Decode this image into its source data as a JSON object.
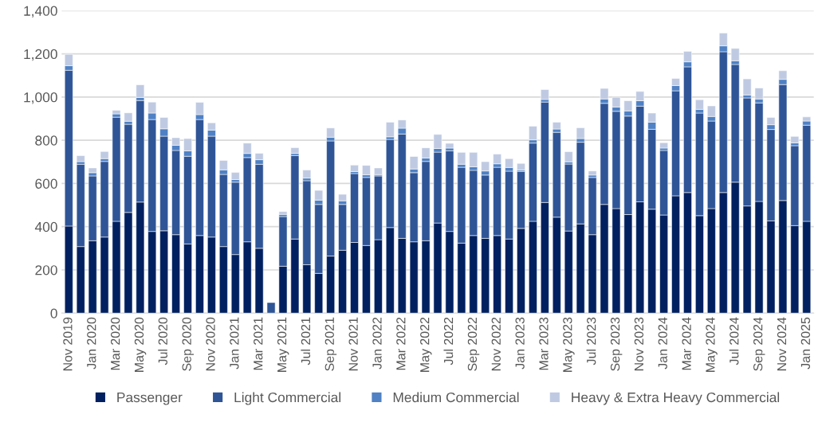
{
  "chart_data": {
    "type": "bar",
    "stacked": true,
    "categories": [
      "Nov 2019",
      null,
      "Jan 2020",
      null,
      "Mar 2020",
      null,
      "May 2020",
      null,
      "Jul 2020",
      null,
      "Sep 2020",
      null,
      "Nov 2020",
      null,
      "Jan 2021",
      null,
      "Mar 2021",
      null,
      "May 2021",
      null,
      "Jul 2021",
      null,
      "Sep 2021",
      null,
      "Nov 2021",
      null,
      "Jan 2022",
      null,
      "Mar 2022",
      null,
      "May 2022",
      null,
      "Jul 2022",
      null,
      "Sep 2022",
      null,
      "Nov 2022",
      null,
      "Jan 2023",
      null,
      "Mar 2023",
      null,
      "May 2023",
      null,
      "Jul 2023",
      null,
      "Sep 2023",
      null,
      "Nov 2023",
      null,
      "Jan 2024",
      null,
      "Mar 2024",
      null,
      "May 2024",
      null,
      "Jul 2024",
      null,
      "Sep 2024",
      null,
      "Nov 2024",
      null,
      "Jan 2025"
    ],
    "series": [
      {
        "name": "Passenger",
        "color": "#002060",
        "values": [
          403,
          308,
          335,
          352,
          425,
          466,
          514,
          378,
          381,
          363,
          320,
          359,
          352,
          308,
          271,
          330,
          300,
          0,
          217,
          343,
          224,
          184,
          264,
          291,
          327,
          313,
          340,
          396,
          346,
          330,
          335,
          417,
          378,
          324,
          359,
          346,
          359,
          343,
          392,
          425,
          512,
          444,
          380,
          413,
          363,
          503,
          484,
          456,
          515,
          481,
          454,
          543,
          558,
          451,
          484,
          558,
          606,
          496,
          517,
          427,
          521,
          405,
          425
        ]
      },
      {
        "name": "Light Commercial",
        "color": "#2f5597",
        "values": [
          721,
          381,
          300,
          350,
          482,
          408,
          470,
          518,
          438,
          390,
          406,
          537,
          467,
          334,
          335,
          390,
          389,
          49,
          230,
          386,
          389,
          319,
          533,
          212,
          319,
          315,
          295,
          408,
          483,
          320,
          367,
          328,
          373,
          351,
          302,
          293,
          316,
          314,
          264,
          362,
          465,
          393,
          310,
          378,
          265,
          468,
          450,
          456,
          443,
          370,
          299,
          486,
          582,
          475,
          405,
          652,
          545,
          500,
          456,
          423,
          537,
          370,
          445
        ]
      },
      {
        "name": "Medium Commercial",
        "color": "#4f81c4",
        "values": [
          21,
          12,
          15,
          13,
          15,
          14,
          14,
          30,
          34,
          24,
          25,
          23,
          28,
          21,
          12,
          19,
          21,
          0,
          10,
          10,
          12,
          20,
          17,
          17,
          9,
          12,
          6,
          12,
          27,
          17,
          16,
          17,
          13,
          14,
          16,
          19,
          16,
          17,
          6,
          15,
          12,
          15,
          10,
          17,
          11,
          20,
          20,
          24,
          25,
          33,
          11,
          24,
          23,
          17,
          21,
          27,
          17,
          14,
          18,
          22,
          24,
          13,
          19
        ]
      },
      {
        "name": "Heavy & Extra Heavy Commercial",
        "color": "#bfcae2",
        "values": [
          53,
          28,
          22,
          33,
          17,
          39,
          59,
          51,
          53,
          35,
          57,
          57,
          34,
          44,
          33,
          48,
          30,
          0,
          13,
          27,
          37,
          45,
          43,
          30,
          30,
          44,
          31,
          68,
          38,
          58,
          47,
          65,
          22,
          55,
          67,
          43,
          45,
          41,
          31,
          63,
          46,
          32,
          47,
          50,
          19,
          49,
          45,
          47,
          43,
          42,
          25,
          33,
          49,
          45,
          49,
          59,
          57,
          74,
          51,
          34,
          40,
          30,
          19
        ]
      }
    ],
    "ylim": [
      0,
      1400
    ],
    "yticks": [
      {
        "value": 0,
        "label": "0"
      },
      {
        "value": 200,
        "label": "200"
      },
      {
        "value": 400,
        "label": "400"
      },
      {
        "value": 600,
        "label": "600"
      },
      {
        "value": 800,
        "label": "800"
      },
      {
        "value": 1000,
        "label": "1,000"
      },
      {
        "value": 1200,
        "label": "1,200"
      },
      {
        "value": 1400,
        "label": "1,400"
      }
    ],
    "grid": "y",
    "legend": "bottom"
  }
}
